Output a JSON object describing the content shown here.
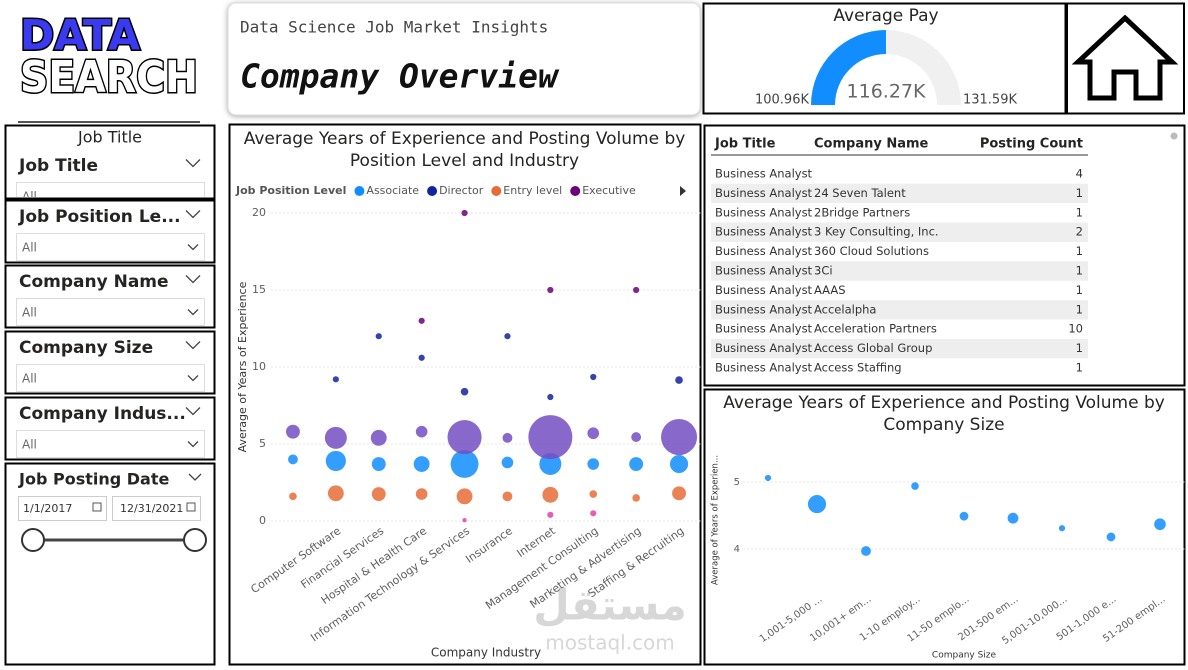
{
  "logo": {
    "line1": "DATA",
    "line2": "SEARCH"
  },
  "header": {
    "subtitle": "Data Science Job Market Insights",
    "title": "Company Overview"
  },
  "filters": {
    "heading": "Job Title",
    "items": [
      {
        "label": "Job Title",
        "value": "All"
      },
      {
        "label": "Job Position Le...",
        "value": "All"
      },
      {
        "label": "Company Name",
        "value": "All"
      },
      {
        "label": "Company Size",
        "value": "All"
      },
      {
        "label": "Company Indus...",
        "value": "All"
      }
    ],
    "date": {
      "label": "Job Posting Date",
      "start": "1/1/2017",
      "end": "12/31/2021"
    }
  },
  "table": {
    "headers": [
      "Job Title",
      "Company Name",
      "Posting Count"
    ],
    "rows": [
      [
        "Business Analyst",
        null,
        4
      ],
      [
        "Business Analyst",
        "24 Seven Talent",
        1
      ],
      [
        "Business Analyst",
        "2Bridge Partners",
        1
      ],
      [
        "Business Analyst",
        "3 Key Consulting, Inc.",
        2
      ],
      [
        "Business Analyst",
        "360 Cloud Solutions",
        1
      ],
      [
        "Business Analyst",
        "3Ci",
        1
      ],
      [
        "Business Analyst",
        "AAAS",
        1
      ],
      [
        "Business Analyst",
        "Accelalpha",
        1
      ],
      [
        "Business Analyst",
        "Acceleration Partners",
        10
      ],
      [
        "Business Analyst",
        "Access Global Group",
        1
      ],
      [
        "Business Analyst",
        "Access Staffing",
        1
      ]
    ]
  },
  "watermark": {
    "arabic": "مستقل",
    "latin": "mostaql.com"
  },
  "chart_data": [
    {
      "type": "gauge",
      "title": "Average Pay",
      "min": 100960,
      "value": 116270,
      "max": 131590,
      "value_labels": {
        "min": "100.96K",
        "value": "116.27K",
        "max": "131.59K"
      },
      "color": "#118DFF",
      "track_color": "#F0F0F0"
    },
    {
      "type": "bubble",
      "title": "Average Years of Experience and Posting Volume by Position Level and Industry",
      "legend_title": "Job Position Level",
      "xlabel": "Company Industry",
      "ylabel": "Average of Years of Experience",
      "categories": [
        null,
        "Computer Software",
        "Financial Services",
        "Hospital & Health Care",
        "Information Technology & Services",
        "Insurance",
        "Internet",
        "Management Consulting",
        "Marketing & Advertising",
        "Staffing & Recruiting"
      ],
      "ylim": [
        0,
        20
      ],
      "yticks": [
        0,
        5,
        10,
        15,
        20
      ],
      "grid": true,
      "series": [
        {
          "name": "Associate",
          "color": "#118DFF",
          "values": [
            4.0,
            3.9,
            3.7,
            3.7,
            3.7,
            3.8,
            3.7,
            3.7,
            3.7,
            3.7
          ],
          "sizes": [
            5,
            21,
            10,
            13,
            40,
            7,
            25,
            7,
            10,
            17
          ]
        },
        {
          "name": "Director",
          "color": "#12239E",
          "values": [
            null,
            9.2,
            12.0,
            10.6,
            8.4,
            12.0,
            8.05,
            9.35,
            null,
            9.15
          ],
          "sizes": [
            null,
            2,
            2,
            2,
            3,
            2,
            2,
            2,
            null,
            3
          ]
        },
        {
          "name": "Entry level",
          "color": "#E66C37",
          "values": [
            1.6,
            1.8,
            1.75,
            1.75,
            1.6,
            1.6,
            1.7,
            1.75,
            1.5,
            1.8
          ],
          "sizes": [
            3,
            13,
            10,
            7,
            13,
            5,
            13,
            3,
            3,
            10
          ]
        },
        {
          "name": "Executive",
          "color": "#6B007B",
          "values": [
            null,
            null,
            null,
            13.0,
            20.0,
            null,
            15.0,
            null,
            15.0,
            null
          ],
          "sizes": [
            null,
            null,
            null,
            2,
            2,
            null,
            2,
            null,
            2,
            null
          ]
        },
        {
          "color": "#744EC2",
          "values": [
            5.8,
            5.4,
            5.4,
            5.8,
            5.45,
            5.4,
            5.45,
            5.7,
            5.45,
            5.45
          ],
          "sizes": [
            10,
            25,
            13,
            7,
            60,
            5,
            100,
            7,
            5,
            67
          ]
        },
        {
          "color": "#E044A7",
          "values": [
            null,
            null,
            null,
            null,
            0.05,
            null,
            0.4,
            0.5,
            null,
            null
          ],
          "sizes": [
            null,
            null,
            null,
            null,
            1,
            null,
            2,
            2,
            null,
            null
          ]
        }
      ]
    },
    {
      "type": "bubble",
      "title": "Average Years of Experience and Posting Volume by Company Size",
      "xlabel": "Company Size",
      "ylabel": "Average of Years of Experien...",
      "categories": [
        null,
        "1,001-5,000 ...",
        "10,001+ em...",
        "1-10 employ...",
        "11-50 emplo...",
        "201-500 em...",
        "5,001-10,000...",
        "501-1,000 e...",
        "51-200 empl..."
      ],
      "ylim": [
        3.4,
        5.4
      ],
      "yticks": [
        4,
        5
      ],
      "grid": true,
      "series": [
        {
          "color": "#118DFF",
          "values": [
            5.06,
            4.67,
            3.97,
            4.94,
            4.49,
            4.46,
            4.31,
            4.18,
            4.37
          ],
          "sizes": [
            2,
            17,
            5,
            3,
            4,
            6,
            2,
            4,
            7
          ]
        }
      ]
    }
  ]
}
